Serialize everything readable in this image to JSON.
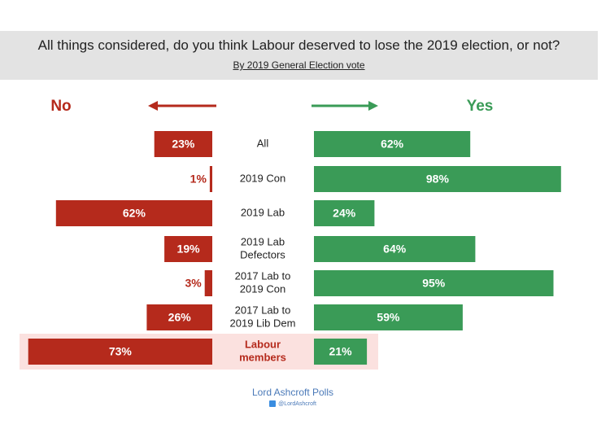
{
  "header": {
    "title": "All things considered, do you think Labour deserved to lose the 2019 election, or not?",
    "subtitle": "By 2019 General Election vote"
  },
  "chart_data": {
    "type": "bar",
    "orientation": "diverging-horizontal",
    "categories": [
      [
        "All"
      ],
      [
        "2019 Con"
      ],
      [
        "2019 Lab"
      ],
      [
        "2019 Lab",
        "Defectors"
      ],
      [
        "2017 Lab to",
        "2019 Con"
      ],
      [
        "2017 Lab to",
        "2019 Lib Dem"
      ],
      [
        "Labour",
        "members"
      ]
    ],
    "series": [
      {
        "name": "No",
        "values": [
          23,
          1,
          62,
          19,
          3,
          26,
          73
        ],
        "color": "#b52a1c",
        "direction": "left"
      },
      {
        "name": "Yes",
        "values": [
          62,
          98,
          24,
          64,
          95,
          59,
          21
        ],
        "color": "#3a9b57",
        "direction": "right"
      }
    ],
    "value_suffix": "%",
    "highlighted_category": "Labour members",
    "highlight_color": "#fbe1df",
    "highlight_label_color": "#b52a1c",
    "xlim": [
      0,
      100
    ]
  },
  "footer": {
    "source": "Lord Ashcroft Polls",
    "handle": "@LordAshcroft",
    "icon": "twitter-icon"
  }
}
